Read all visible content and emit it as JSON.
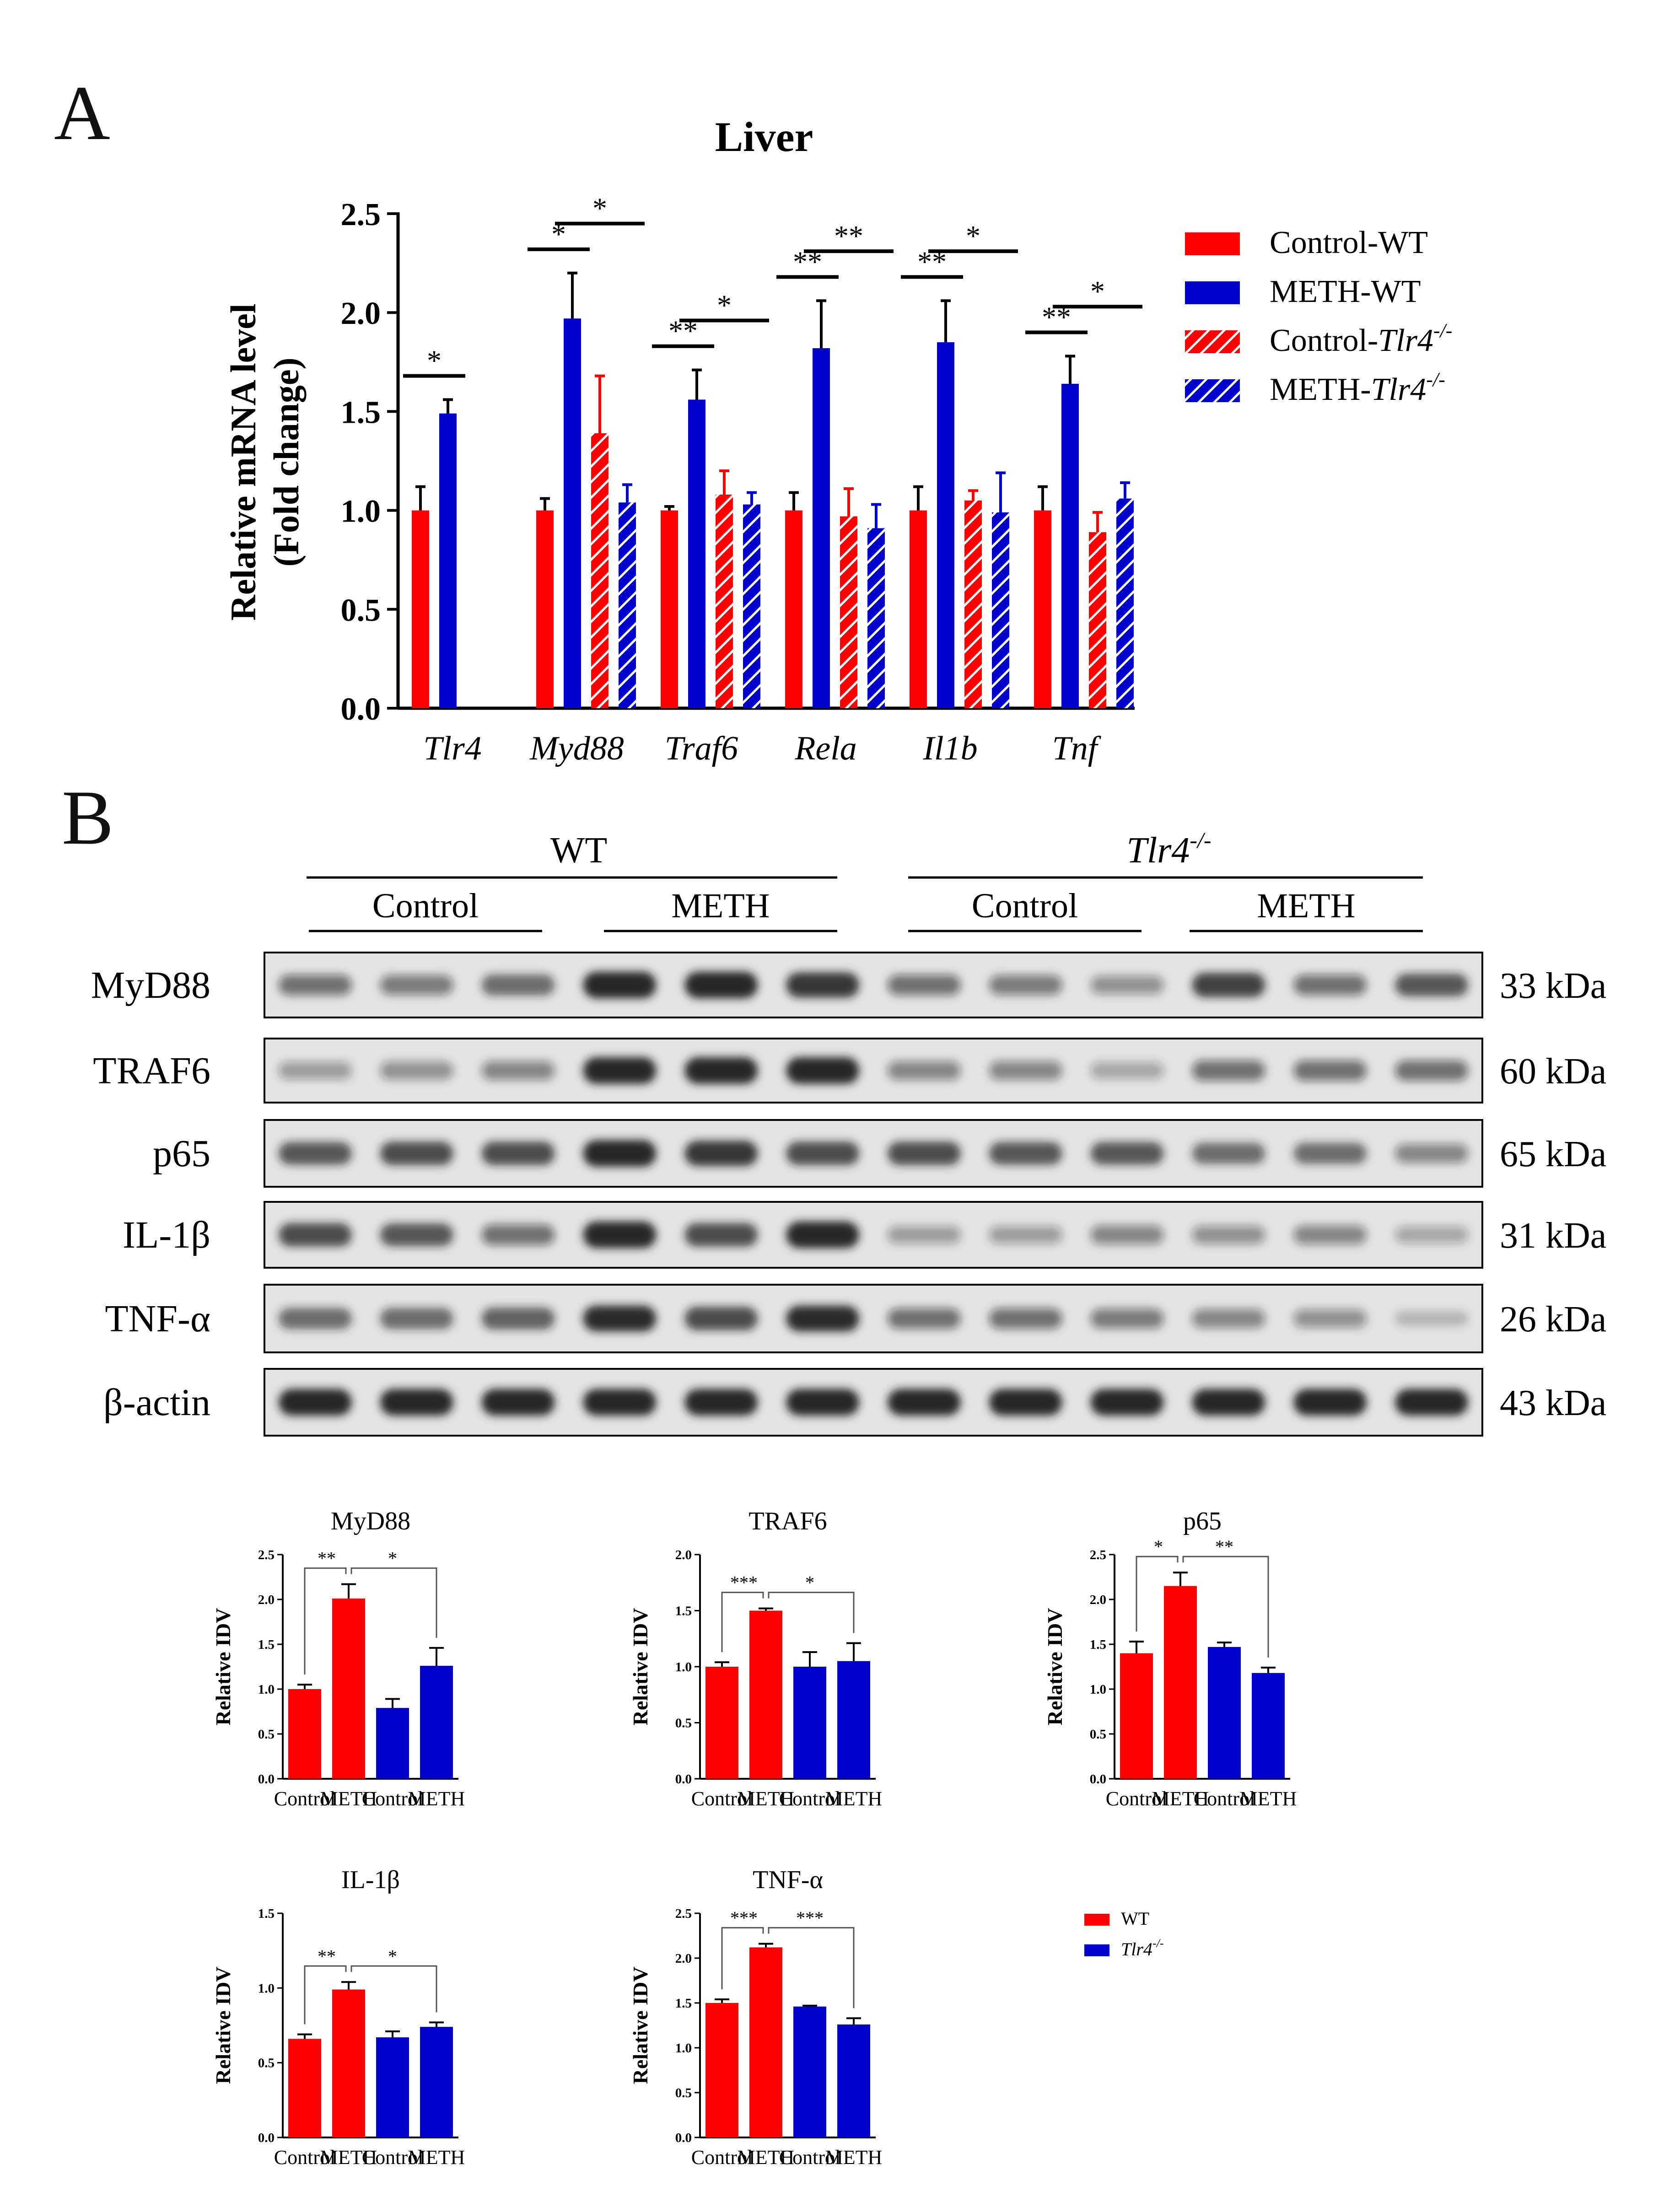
{
  "colors": {
    "red": "#ff0000",
    "blue": "#0000cc",
    "axis": "#000000",
    "blot_bg": "#e3e3e3",
    "band": "#1a1a1a"
  },
  "panels": {
    "a": "A",
    "b": "B"
  },
  "chart_a": {
    "title": "Liver",
    "ylabel_line1": "Relative mRNA level",
    "ylabel_line2": "(Fold change)",
    "ylim": [
      0,
      2.5
    ],
    "yticks": [
      "0.0",
      "0.5",
      "1.0",
      "1.5",
      "2.0",
      "2.5"
    ],
    "legend": {
      "control_wt": "Control-WT",
      "meth_wt": "METH-WT",
      "control_ko_prefix": "Control-",
      "meth_ko_prefix": "METH-",
      "gene": "Tlr4",
      "sup": "-/-"
    },
    "groups": [
      {
        "gene": "Tlr4",
        "values": [
          1.0,
          1.49,
          null,
          null
        ],
        "errors": [
          0.12,
          0.07,
          null,
          null
        ],
        "sig": [
          {
            "pair": [
              0,
              1
            ],
            "label": "*"
          }
        ]
      },
      {
        "gene": "Myd88",
        "values": [
          1.0,
          1.97,
          1.39,
          1.04
        ],
        "errors": [
          0.06,
          0.23,
          0.29,
          0.09
        ],
        "sig": [
          {
            "pair": [
              0,
              1
            ],
            "label": "*"
          },
          {
            "pair": [
              1,
              3
            ],
            "label": "*"
          }
        ]
      },
      {
        "gene": "Traf6",
        "values": [
          1.0,
          1.56,
          1.08,
          1.03
        ],
        "errors": [
          0.02,
          0.15,
          0.12,
          0.06
        ],
        "sig": [
          {
            "pair": [
              0,
              1
            ],
            "label": "**"
          },
          {
            "pair": [
              1,
              3
            ],
            "label": "*"
          }
        ]
      },
      {
        "gene": "Rela",
        "values": [
          1.0,
          1.82,
          0.97,
          0.91
        ],
        "errors": [
          0.09,
          0.24,
          0.14,
          0.12
        ],
        "sig": [
          {
            "pair": [
              0,
              1
            ],
            "label": "**"
          },
          {
            "pair": [
              1,
              3
            ],
            "label": "**"
          }
        ]
      },
      {
        "gene": "Il1b",
        "values": [
          1.0,
          1.85,
          1.05,
          0.99
        ],
        "errors": [
          0.12,
          0.21,
          0.05,
          0.2
        ],
        "sig": [
          {
            "pair": [
              0,
              1
            ],
            "label": "**"
          },
          {
            "pair": [
              1,
              3
            ],
            "label": "*"
          }
        ]
      },
      {
        "gene": "Tnf",
        "values": [
          1.0,
          1.64,
          0.89,
          1.06
        ],
        "errors": [
          0.12,
          0.14,
          0.1,
          0.08
        ],
        "sig": [
          {
            "pair": [
              0,
              1
            ],
            "label": "**"
          },
          {
            "pair": [
              1,
              3
            ],
            "label": "*"
          }
        ]
      }
    ]
  },
  "blot": {
    "wt_label": "WT",
    "ko_gene": "Tlr4",
    "ko_sup": "-/-",
    "group_labels": [
      "Control",
      "METH",
      "Control",
      "METH"
    ],
    "rows": [
      {
        "label": "MyD88",
        "kda": "33 kDa",
        "intensity": [
          0.55,
          0.5,
          0.6,
          0.95,
          0.95,
          0.85,
          0.55,
          0.5,
          0.4,
          0.8,
          0.55,
          0.7
        ]
      },
      {
        "label": "TRAF6",
        "kda": "60 kDa",
        "intensity": [
          0.35,
          0.4,
          0.45,
          0.95,
          0.95,
          0.95,
          0.45,
          0.45,
          0.3,
          0.55,
          0.55,
          0.55
        ]
      },
      {
        "label": "p65",
        "kda": "65 kDa",
        "intensity": [
          0.7,
          0.75,
          0.75,
          0.95,
          0.85,
          0.75,
          0.75,
          0.7,
          0.7,
          0.6,
          0.6,
          0.45
        ]
      },
      {
        "label": "IL-1β",
        "kda": "31 kDa",
        "intensity": [
          0.75,
          0.7,
          0.55,
          0.95,
          0.75,
          0.95,
          0.35,
          0.35,
          0.45,
          0.4,
          0.45,
          0.3
        ]
      },
      {
        "label": "TNF-α",
        "kda": "26 kDa",
        "intensity": [
          0.6,
          0.6,
          0.65,
          0.9,
          0.75,
          0.9,
          0.55,
          0.55,
          0.5,
          0.45,
          0.4,
          0.2
        ]
      },
      {
        "label": "β-actin",
        "kda": "43 kDa",
        "intensity": [
          0.95,
          0.95,
          0.95,
          0.95,
          0.95,
          0.95,
          0.95,
          0.95,
          0.95,
          0.95,
          0.95,
          0.95
        ]
      }
    ]
  },
  "chart_data": [
    {
      "type": "bar",
      "title": "MyD88",
      "ylabel": "Relative IDV",
      "ylim": [
        0,
        2.5
      ],
      "yticks": [
        "0.0",
        "0.5",
        "1.0",
        "1.5",
        "2.0",
        "2.5"
      ],
      "categories": [
        "Control",
        "METH",
        "Control",
        "METH"
      ],
      "values": [
        1.0,
        2.01,
        0.79,
        1.26
      ],
      "errors": [
        0.05,
        0.16,
        0.1,
        0.2
      ],
      "sig": [
        {
          "pair": [
            0,
            1
          ],
          "label": "**"
        },
        {
          "pair": [
            1,
            3
          ],
          "label": "*"
        }
      ]
    },
    {
      "type": "bar",
      "title": "TRAF6",
      "ylabel": "Relative IDV",
      "ylim": [
        0,
        2.0
      ],
      "yticks": [
        "0.0",
        "0.5",
        "1.0",
        "1.5",
        "2.0"
      ],
      "categories": [
        "Control",
        "METH",
        "Control",
        "METH"
      ],
      "values": [
        1.0,
        1.5,
        1.0,
        1.05
      ],
      "errors": [
        0.04,
        0.02,
        0.13,
        0.16
      ],
      "sig": [
        {
          "pair": [
            0,
            1
          ],
          "label": "***"
        },
        {
          "pair": [
            1,
            3
          ],
          "label": "*"
        }
      ]
    },
    {
      "type": "bar",
      "title": "p65",
      "ylabel": "Relative IDV",
      "ylim": [
        0,
        2.5
      ],
      "yticks": [
        "0.0",
        "0.5",
        "1.0",
        "1.5",
        "2.0",
        "2.5"
      ],
      "categories": [
        "Control",
        "METH",
        "Control",
        "METH"
      ],
      "values": [
        1.4,
        2.15,
        1.47,
        1.18
      ],
      "errors": [
        0.13,
        0.15,
        0.05,
        0.06
      ],
      "sig": [
        {
          "pair": [
            0,
            1
          ],
          "label": "*"
        },
        {
          "pair": [
            1,
            3
          ],
          "label": "**"
        }
      ]
    },
    {
      "type": "bar",
      "title": "IL-1β",
      "ylabel": "Relative IDV",
      "ylim": [
        0,
        1.5
      ],
      "yticks": [
        "0.0",
        "0.5",
        "1.0",
        "1.5"
      ],
      "categories": [
        "Control",
        "METH",
        "Control",
        "METH"
      ],
      "values": [
        0.66,
        0.99,
        0.67,
        0.74
      ],
      "errors": [
        0.03,
        0.05,
        0.04,
        0.03
      ],
      "sig": [
        {
          "pair": [
            0,
            1
          ],
          "label": "**"
        },
        {
          "pair": [
            1,
            3
          ],
          "label": "*"
        }
      ]
    },
    {
      "type": "bar",
      "title": "TNF-α",
      "ylabel": "Relative IDV",
      "ylim": [
        0,
        2.5
      ],
      "yticks": [
        "0.0",
        "0.5",
        "1.0",
        "1.5",
        "2.0",
        "2.5"
      ],
      "categories": [
        "Control",
        "METH",
        "Control",
        "METH"
      ],
      "values": [
        1.5,
        2.12,
        1.46,
        1.26
      ],
      "errors": [
        0.04,
        0.04,
        0.01,
        0.07
      ],
      "sig": [
        {
          "pair": [
            0,
            1
          ],
          "label": "***"
        },
        {
          "pair": [
            1,
            3
          ],
          "label": "***"
        }
      ]
    }
  ],
  "small_legend": {
    "wt": "WT",
    "ko_gene": "Tlr4",
    "ko_sup": "-/-"
  }
}
